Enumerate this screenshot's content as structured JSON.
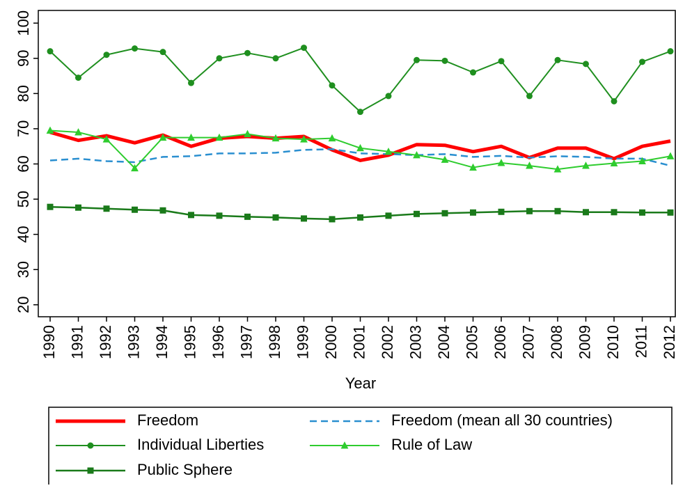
{
  "chart_data": {
    "type": "line",
    "x_label": "Year",
    "categories": [
      "1990",
      "1991",
      "1992",
      "1993",
      "1994",
      "1995",
      "1996",
      "1997",
      "1998",
      "1999",
      "2000",
      "2001",
      "2002",
      "2003",
      "2004",
      "2005",
      "2006",
      "2007",
      "2008",
      "2009",
      "2010",
      "2011",
      "2012"
    ],
    "ylim": [
      16.6,
      103.6
    ],
    "yticks": [
      20,
      30,
      40,
      50,
      60,
      70,
      80,
      90,
      100
    ],
    "series": [
      {
        "name": "Freedom",
        "color": "#ff0000",
        "width": 5,
        "dash": false,
        "marker": "none",
        "values": [
          69,
          66.7,
          68,
          66,
          68.2,
          65,
          67.3,
          67.8,
          67.3,
          67.8,
          64,
          61,
          62.5,
          65.5,
          65.3,
          63.5,
          65,
          61.8,
          64.5,
          64.5,
          61.5,
          65,
          66.5
        ]
      },
      {
        "name": "Freedom (mean all 30 countries)",
        "color": "#2a8fd0",
        "width": 2.5,
        "dash": true,
        "marker": "none",
        "values": [
          61,
          61.5,
          60.8,
          60.5,
          62,
          62.2,
          63,
          63,
          63.2,
          64,
          64.2,
          63,
          62.8,
          62.5,
          62.8,
          62,
          62.3,
          61.8,
          62.2,
          62,
          61.5,
          61.5,
          59.5
        ]
      },
      {
        "name": "Individual Liberties",
        "color": "#1f8f1f",
        "width": 2,
        "dash": false,
        "marker": "circle",
        "values": [
          92,
          84.5,
          91,
          92.8,
          91.8,
          83,
          90,
          91.5,
          90,
          93,
          82.3,
          74.8,
          79.3,
          89.5,
          89.3,
          86,
          89.2,
          79.3,
          89.5,
          88.4,
          77.8,
          89,
          92
        ]
      },
      {
        "name": "Rule of Law",
        "color": "#2ecc2e",
        "width": 2,
        "dash": false,
        "marker": "triangle",
        "values": [
          69.5,
          69,
          67,
          58.8,
          67.5,
          67.5,
          67.5,
          68.5,
          67.3,
          67,
          67.3,
          64.5,
          63.5,
          62.5,
          61.2,
          59,
          60.3,
          59.5,
          58.5,
          59.5,
          60.2,
          60.8,
          62.2
        ]
      },
      {
        "name": "Public Sphere",
        "color": "#1a7a1a",
        "width": 2.5,
        "dash": false,
        "marker": "square",
        "values": [
          47.8,
          47.6,
          47.3,
          47,
          46.8,
          45.5,
          45.3,
          45,
          44.8,
          44.5,
          44.3,
          44.8,
          45.3,
          45.8,
          46,
          46.2,
          46.4,
          46.6,
          46.6,
          46.3,
          46.3,
          46.2,
          46.2
        ]
      }
    ]
  }
}
